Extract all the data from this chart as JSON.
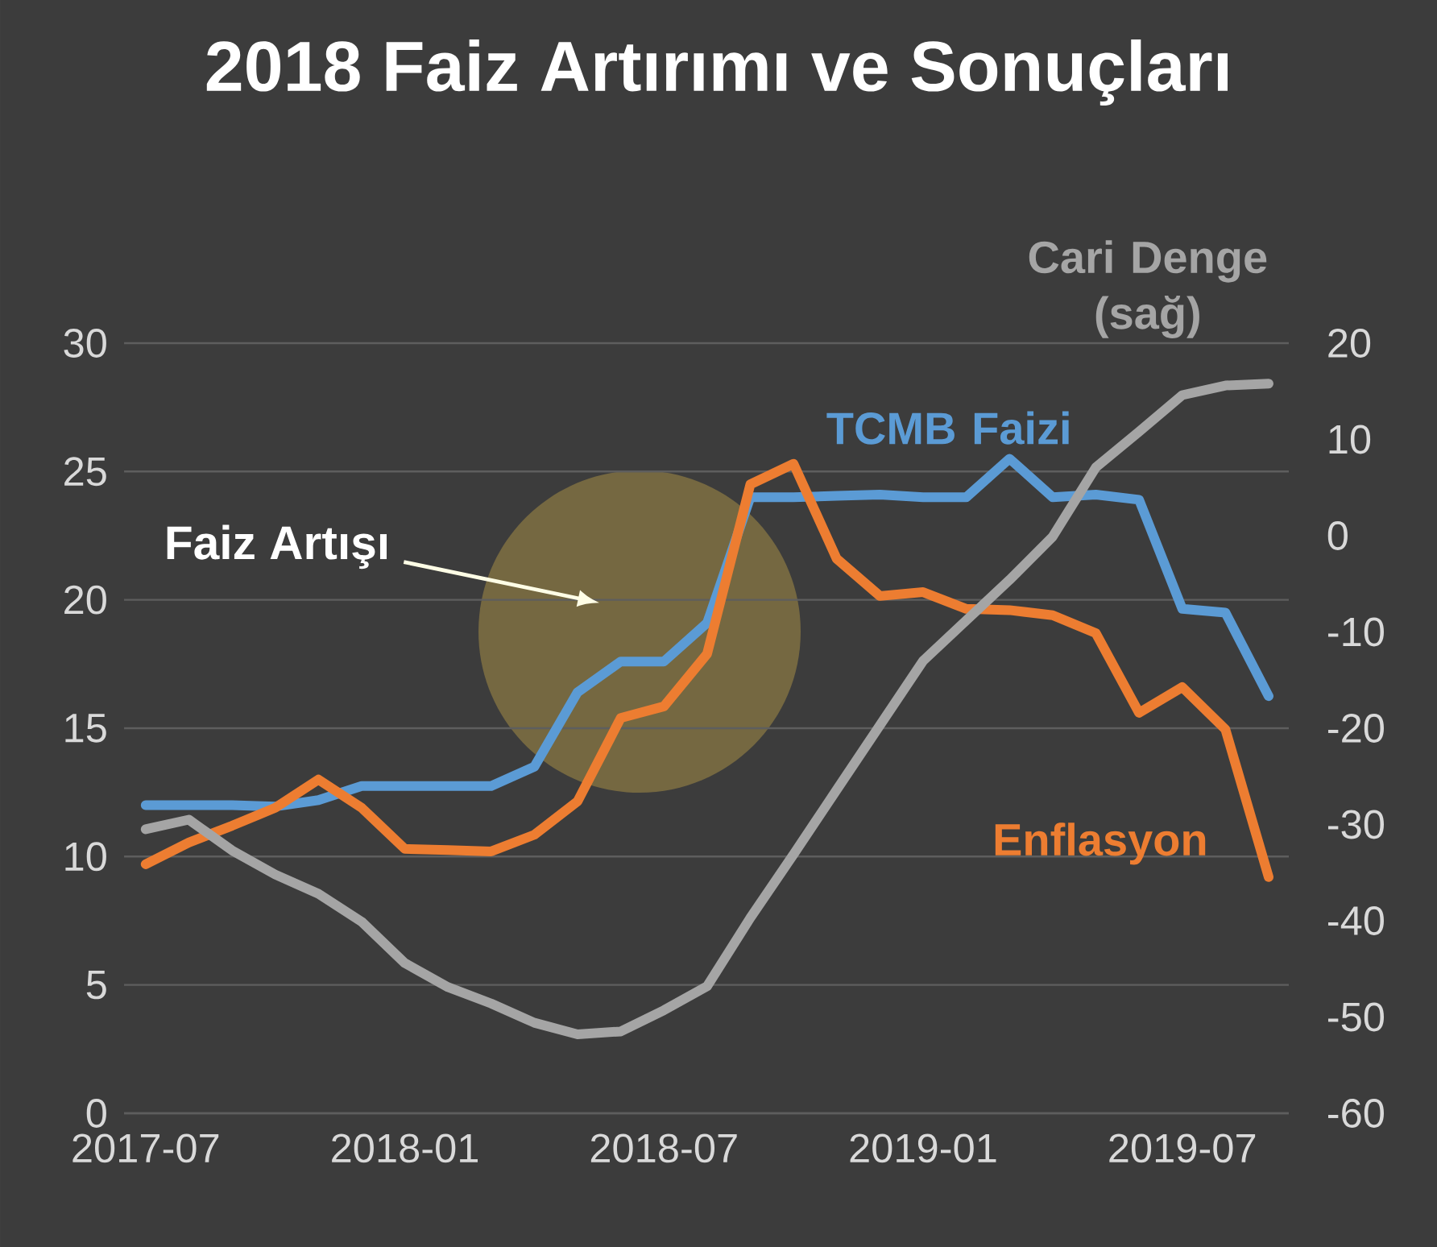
{
  "chart_data": {
    "type": "line",
    "title": "2018 Faiz Artırımı ve Sonuçları",
    "x": [
      "2017-07",
      "2017-08",
      "2017-09",
      "2017-10",
      "2017-11",
      "2017-12",
      "2018-01",
      "2018-02",
      "2018-03",
      "2018-04",
      "2018-05",
      "2018-06",
      "2018-07",
      "2018-08",
      "2018-09",
      "2018-10",
      "2018-11",
      "2018-12",
      "2019-01",
      "2019-02",
      "2019-03",
      "2019-04",
      "2019-05",
      "2019-06",
      "2019-07",
      "2019-08",
      "2019-09"
    ],
    "series": [
      {
        "name": "TCMB Faizi",
        "color": "#5b9bd5",
        "values": [
          12.0,
          12.0,
          12.0,
          11.95,
          12.2,
          12.75,
          12.75,
          12.75,
          12.75,
          13.5,
          16.4,
          17.6,
          17.6,
          19.1,
          24.0,
          24.0,
          24.05,
          24.1,
          24.0,
          24.0,
          25.5,
          24.0,
          24.1,
          23.9,
          19.65,
          19.5,
          16.25
        ]
      },
      {
        "name": "Enflasyon",
        "color": "#ed7d31",
        "values": [
          9.7,
          10.55,
          11.2,
          11.9,
          13.0,
          11.9,
          10.3,
          10.25,
          10.2,
          10.85,
          12.15,
          15.4,
          15.85,
          17.9,
          24.5,
          25.3,
          21.6,
          20.15,
          20.3,
          19.65,
          19.6,
          19.4,
          18.7,
          15.6,
          16.6,
          14.95,
          9.2
        ]
      },
      {
        "name": "Cari Denge (sağ)",
        "color": "#a5a5a5",
        "axis": "y2",
        "values": [
          -30.5,
          -29.5,
          -32.7,
          -35.2,
          -37.2,
          -40.1,
          -44.4,
          -46.9,
          -48.6,
          -50.6,
          -51.8,
          -51.5,
          -49.3,
          -46.8,
          -39.7,
          -33.1,
          -26.4,
          -19.7,
          -13.0,
          -8.8,
          -4.6,
          -0.1,
          7.1,
          10.8,
          14.6,
          15.6,
          15.8
        ]
      }
    ],
    "xlim": [
      "2017-06-16",
      "2019-09-15"
    ],
    "xticks": [
      "2017-07",
      "2018-01",
      "2018-07",
      "2019-01",
      "2019-07"
    ],
    "ylim": [
      0,
      30
    ],
    "yticks": [
      0,
      5,
      10,
      15,
      20,
      25,
      30
    ],
    "y2lim": [
      -60,
      20
    ],
    "y2ticks": [
      -60,
      -50,
      -40,
      -30,
      -20,
      -10,
      0,
      10,
      20
    ],
    "annotations": [
      "Faiz Artışı"
    ],
    "grid": "y",
    "marker": "none",
    "line_style": "solid"
  }
}
